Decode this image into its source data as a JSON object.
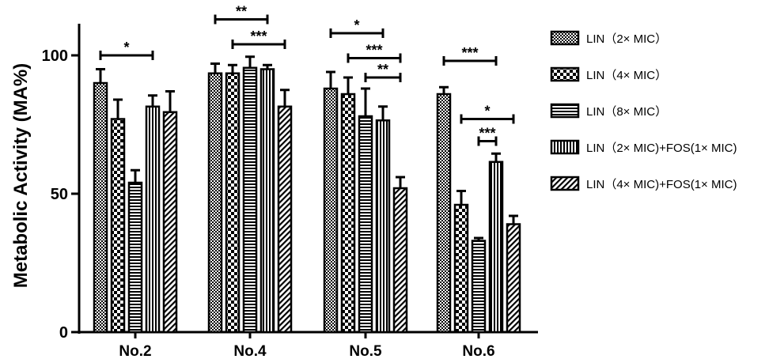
{
  "chart_data": {
    "type": "bar",
    "ylabel": "Metabolic Activity (MA%)",
    "ylim": [
      0,
      110
    ],
    "yticks": [
      0,
      50,
      100
    ],
    "grid": false,
    "legend_position": "right",
    "categories": [
      "No.2",
      "No.4",
      "No.5",
      "No.6"
    ],
    "series": [
      {
        "name": "LIN（2× MIC）",
        "pattern": "checker-fine",
        "values": [
          90,
          93.5,
          88,
          86
        ],
        "errors": [
          5,
          3.5,
          6,
          2.5
        ]
      },
      {
        "name": "LIN（4× MIC）",
        "pattern": "checker-coarse",
        "values": [
          77,
          93.5,
          86,
          46
        ],
        "errors": [
          7,
          3,
          6,
          5
        ]
      },
      {
        "name": "LIN（8× MIC）",
        "pattern": "horizontal",
        "values": [
          54,
          95.5,
          78,
          33
        ],
        "errors": [
          4.5,
          4,
          10,
          1
        ]
      },
      {
        "name": "LIN（2× MIC)+FOS(1× MIC)",
        "pattern": "vertical",
        "values": [
          81.5,
          95,
          76.5,
          61.5
        ],
        "errors": [
          4,
          1.5,
          5,
          3
        ]
      },
      {
        "name": "LIN（4× MIC)+FOS(1× MIC)",
        "pattern": "diagonal",
        "values": [
          79.5,
          81.5,
          52,
          39
        ],
        "errors": [
          7.5,
          6,
          4,
          3
        ]
      }
    ],
    "annotations": [
      {
        "group": 0,
        "from": 0,
        "to": 3,
        "label": "*",
        "y": 100
      },
      {
        "group": 1,
        "from": 0,
        "to": 3,
        "label": "**",
        "y": 113
      },
      {
        "group": 1,
        "from": 1,
        "to": 4,
        "label": "***",
        "y": 104
      },
      {
        "group": 2,
        "from": 0,
        "to": 3,
        "label": "*",
        "y": 108
      },
      {
        "group": 2,
        "from": 1,
        "to": 4,
        "label": "***",
        "y": 99
      },
      {
        "group": 2,
        "from": 2,
        "to": 4,
        "label": "**",
        "y": 92
      },
      {
        "group": 3,
        "from": 0,
        "to": 3,
        "label": "***",
        "y": 98
      },
      {
        "group": 3,
        "from": 1,
        "to": 4,
        "label": "*",
        "y": 77
      },
      {
        "group": 3,
        "from": 2,
        "to": 3,
        "label": "***",
        "y": 69
      }
    ]
  }
}
